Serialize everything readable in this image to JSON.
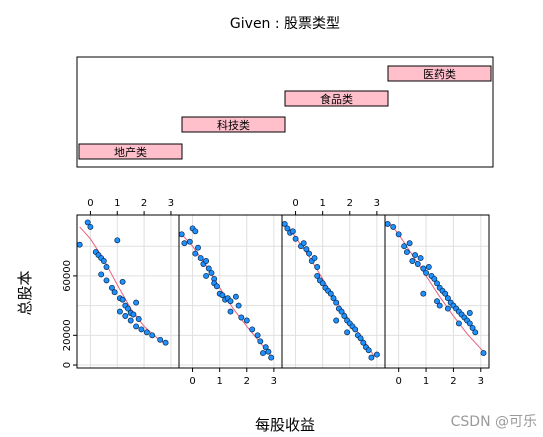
{
  "chart_data": {
    "type": "scatter",
    "title": "",
    "given_label": "Given : 股票类型",
    "xlabel": "每股收益",
    "ylabel": "总股本",
    "xlim": [
      -0.5,
      3.3
    ],
    "ylim": [
      -2000,
      101000
    ],
    "x_ticks": [
      0,
      1,
      2,
      3
    ],
    "y_ticks": [
      0,
      20000,
      60000
    ],
    "shingles": [
      {
        "name": "地产类",
        "range": [
          0,
          1
        ]
      },
      {
        "name": "科技类",
        "range": [
          1,
          2
        ]
      },
      {
        "name": "食品类",
        "range": [
          2,
          3
        ]
      },
      {
        "name": "医药类",
        "range": [
          3,
          4
        ]
      }
    ],
    "panels": [
      {
        "name": "地产类",
        "points": [
          [
            -0.4,
            81000
          ],
          [
            -0.1,
            96000
          ],
          [
            0.0,
            93000
          ],
          [
            0.2,
            76000
          ],
          [
            0.3,
            74000
          ],
          [
            0.4,
            72000
          ],
          [
            0.5,
            70000
          ],
          [
            0.6,
            66000
          ],
          [
            0.4,
            61000
          ],
          [
            0.6,
            57000
          ],
          [
            0.8,
            52000
          ],
          [
            0.9,
            49000
          ],
          [
            1.0,
            84000
          ],
          [
            1.1,
            45000
          ],
          [
            1.2,
            56000
          ],
          [
            1.2,
            44000
          ],
          [
            1.3,
            40000
          ],
          [
            1.1,
            36000
          ],
          [
            1.4,
            38000
          ],
          [
            1.5,
            35000
          ],
          [
            1.3,
            33000
          ],
          [
            1.6,
            34000
          ],
          [
            1.7,
            42000
          ],
          [
            1.8,
            31000
          ],
          [
            1.5,
            30000
          ],
          [
            1.7,
            26000
          ],
          [
            1.9,
            24000
          ],
          [
            2.1,
            22000
          ],
          [
            2.3,
            20000
          ],
          [
            2.6,
            17000
          ],
          [
            2.8,
            15000
          ]
        ],
        "fit": [
          [
            -0.4,
            93000
          ],
          [
            0.0,
            85000
          ],
          [
            0.5,
            71000
          ],
          [
            1.0,
            54000
          ],
          [
            1.5,
            38000
          ],
          [
            2.0,
            26000
          ],
          [
            2.5,
            18000
          ],
          [
            2.8,
            14000
          ]
        ]
      },
      {
        "name": "科技类",
        "points": [
          [
            -0.4,
            88000
          ],
          [
            -0.3,
            82000
          ],
          [
            -0.1,
            83000
          ],
          [
            0.0,
            92000
          ],
          [
            0.1,
            90000
          ],
          [
            0.2,
            79000
          ],
          [
            0.1,
            75000
          ],
          [
            0.3,
            72000
          ],
          [
            0.4,
            68000
          ],
          [
            0.5,
            70000
          ],
          [
            0.6,
            65000
          ],
          [
            0.5,
            60000
          ],
          [
            0.7,
            62000
          ],
          [
            0.8,
            58000
          ],
          [
            0.8,
            55000
          ],
          [
            0.9,
            53000
          ],
          [
            1.0,
            48000
          ],
          [
            1.1,
            47000
          ],
          [
            1.2,
            44000
          ],
          [
            1.3,
            45000
          ],
          [
            1.4,
            43000
          ],
          [
            1.6,
            46000
          ],
          [
            1.7,
            40000
          ],
          [
            1.4,
            36000
          ],
          [
            1.8,
            32000
          ],
          [
            2.0,
            30000
          ],
          [
            2.2,
            24000
          ],
          [
            2.4,
            20000
          ],
          [
            2.5,
            16000
          ],
          [
            2.7,
            12000
          ],
          [
            2.8,
            9000
          ],
          [
            2.9,
            5000
          ],
          [
            2.6,
            8000
          ]
        ],
        "fit": [
          [
            -0.4,
            88000
          ],
          [
            0.0,
            80000
          ],
          [
            0.5,
            67000
          ],
          [
            1.0,
            52000
          ],
          [
            1.5,
            38000
          ],
          [
            2.0,
            26000
          ],
          [
            2.5,
            15000
          ],
          [
            2.9,
            6000
          ]
        ]
      },
      {
        "name": "食品类",
        "points": [
          [
            -0.4,
            95000
          ],
          [
            -0.3,
            92000
          ],
          [
            -0.2,
            89000
          ],
          [
            -0.1,
            90000
          ],
          [
            0.0,
            85000
          ],
          [
            0.2,
            80000
          ],
          [
            0.3,
            82000
          ],
          [
            0.4,
            78000
          ],
          [
            0.5,
            75000
          ],
          [
            0.6,
            70000
          ],
          [
            0.7,
            72000
          ],
          [
            0.8,
            66000
          ],
          [
            0.8,
            60000
          ],
          [
            0.9,
            57000
          ],
          [
            1.0,
            55000
          ],
          [
            1.1,
            52000
          ],
          [
            1.2,
            50000
          ],
          [
            1.3,
            48000
          ],
          [
            1.4,
            45000
          ],
          [
            1.5,
            42000
          ],
          [
            1.6,
            38000
          ],
          [
            1.7,
            36000
          ],
          [
            1.8,
            33000
          ],
          [
            1.9,
            30000
          ],
          [
            2.0,
            28000
          ],
          [
            2.1,
            26000
          ],
          [
            2.2,
            24000
          ],
          [
            2.3,
            20000
          ],
          [
            2.4,
            18000
          ],
          [
            2.5,
            15000
          ],
          [
            2.6,
            12000
          ],
          [
            2.7,
            10000
          ],
          [
            2.8,
            5000
          ],
          [
            3.0,
            7000
          ],
          [
            1.5,
            30000
          ],
          [
            1.9,
            22000
          ]
        ],
        "fit": [
          [
            -0.4,
            96000
          ],
          [
            0.0,
            86000
          ],
          [
            0.5,
            73000
          ],
          [
            1.0,
            58000
          ],
          [
            1.5,
            43000
          ],
          [
            2.0,
            30000
          ],
          [
            2.5,
            17000
          ],
          [
            2.9,
            6000
          ]
        ]
      },
      {
        "name": "医药类",
        "points": [
          [
            -0.4,
            95000
          ],
          [
            -0.2,
            93000
          ],
          [
            0.0,
            88000
          ],
          [
            0.2,
            80000
          ],
          [
            0.3,
            76000
          ],
          [
            0.4,
            82000
          ],
          [
            0.5,
            70000
          ],
          [
            0.6,
            74000
          ],
          [
            0.7,
            68000
          ],
          [
            0.8,
            72000
          ],
          [
            0.9,
            65000
          ],
          [
            1.0,
            62000
          ],
          [
            1.1,
            66000
          ],
          [
            1.2,
            60000
          ],
          [
            1.3,
            58000
          ],
          [
            1.4,
            55000
          ],
          [
            1.5,
            52000
          ],
          [
            1.6,
            50000
          ],
          [
            1.7,
            48000
          ],
          [
            1.8,
            45000
          ],
          [
            1.9,
            42000
          ],
          [
            2.0,
            40000
          ],
          [
            2.1,
            38000
          ],
          [
            2.2,
            36000
          ],
          [
            2.3,
            34000
          ],
          [
            2.4,
            32000
          ],
          [
            2.5,
            30000
          ],
          [
            2.6,
            28000
          ],
          [
            2.7,
            25000
          ],
          [
            2.8,
            22000
          ],
          [
            3.1,
            8000
          ],
          [
            1.5,
            40000
          ],
          [
            1.8,
            38000
          ],
          [
            2.2,
            28000
          ],
          [
            0.9,
            48000
          ],
          [
            1.4,
            43000
          ],
          [
            2.6,
            35000
          ]
        ],
        "fit": [
          [
            -0.4,
            97000
          ],
          [
            0.0,
            88000
          ],
          [
            0.5,
            74000
          ],
          [
            1.0,
            60000
          ],
          [
            1.5,
            46000
          ],
          [
            2.0,
            33000
          ],
          [
            2.5,
            21000
          ],
          [
            3.1,
            9000
          ]
        ]
      }
    ]
  },
  "watermark": "CSDN @可乐",
  "colors": {
    "point_fill": "#1e90ff",
    "point_stroke": "#0b2a4a",
    "fit_line": "#e8607f",
    "strip_fill": "#ffc0cb",
    "grid": "#e0e0e0",
    "frame": "#000000"
  }
}
